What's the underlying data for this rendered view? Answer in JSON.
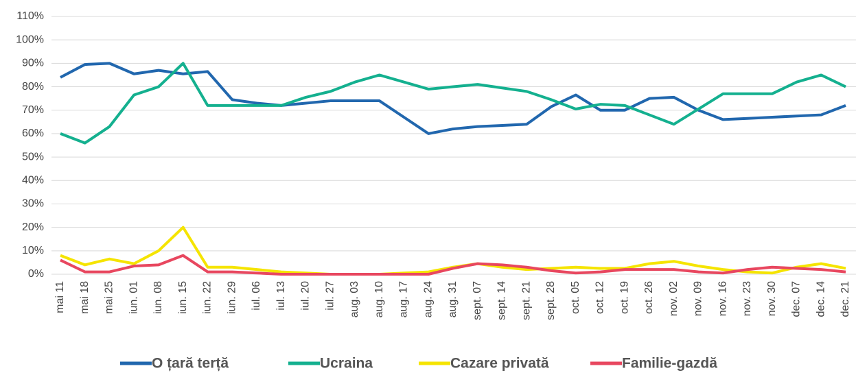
{
  "chart_data": {
    "type": "line",
    "categories": [
      "mai 11",
      "mai 18",
      "mai 25",
      "iun. 01",
      "iun. 08",
      "iun. 15",
      "iun. 22",
      "iun. 29",
      "iul. 06",
      "iul. 13",
      "iul. 20",
      "iul. 27",
      "aug. 03",
      "aug. 10",
      "aug. 17",
      "aug. 24",
      "aug. 31",
      "sept. 07",
      "sept. 14",
      "sept. 21",
      "sept. 28",
      "oct. 05",
      "oct. 12",
      "oct. 19",
      "oct. 26",
      "nov. 02",
      "nov. 09",
      "nov. 16",
      "nov. 23",
      "nov. 30",
      "dec. 07",
      "dec. 14",
      "dec. 21"
    ],
    "series": [
      {
        "name": "O țară terță",
        "color": "#2167ae",
        "values": [
          84,
          89.5,
          90,
          85.5,
          87,
          85.5,
          86.5,
          74.5,
          73,
          72,
          73,
          74,
          74,
          74,
          67,
          60,
          62,
          63,
          63.5,
          64,
          71.5,
          76.5,
          70,
          70,
          75,
          75.5,
          70,
          66,
          66.5,
          67,
          67.5,
          68,
          72
        ]
      },
      {
        "name": "Ucraina",
        "color": "#14b08f",
        "values": [
          60,
          56,
          63,
          76.5,
          80,
          90,
          72,
          72,
          72,
          72,
          75.5,
          78,
          82,
          85,
          82,
          79,
          80,
          81,
          79.5,
          78,
          74.5,
          70.5,
          72.5,
          72,
          68,
          64,
          70.5,
          77,
          77,
          77,
          82,
          85,
          80
        ]
      },
      {
        "name": "Cazare privată",
        "color": "#f5e400",
        "values": [
          8,
          4,
          6.5,
          4.5,
          10,
          20,
          3,
          3,
          2,
          1,
          0.5,
          0,
          0,
          0,
          0.5,
          1,
          3,
          4.5,
          3,
          2,
          2.5,
          3,
          2.5,
          2.5,
          4.5,
          5.5,
          3.5,
          2,
          1,
          0.5,
          3,
          4.5,
          2.5
        ]
      },
      {
        "name": "Familie-gazdă",
        "color": "#e8475f",
        "values": [
          6,
          1,
          1,
          3.5,
          4,
          8,
          1,
          1,
          0.5,
          0,
          0,
          0,
          0,
          0,
          0,
          0,
          2.5,
          4.5,
          4,
          3,
          1.5,
          0.5,
          1,
          2,
          2,
          2,
          1,
          0.5,
          2,
          3,
          2.5,
          2,
          1
        ]
      }
    ],
    "ylim": [
      0,
      110
    ],
    "yticks": [
      {
        "value": 0,
        "label": "0%"
      },
      {
        "value": 10,
        "label": "10%"
      },
      {
        "value": 20,
        "label": "20%"
      },
      {
        "value": 30,
        "label": "30%"
      },
      {
        "value": 40,
        "label": "40%"
      },
      {
        "value": 50,
        "label": "50%"
      },
      {
        "value": 60,
        "label": "60%"
      },
      {
        "value": 70,
        "label": "70%"
      },
      {
        "value": 80,
        "label": "80%"
      },
      {
        "value": 90,
        "label": "90%"
      },
      {
        "value": 100,
        "label": "100%"
      },
      {
        "value": 110,
        "label": "110%"
      }
    ],
    "grid": true,
    "legend": "bottom"
  }
}
